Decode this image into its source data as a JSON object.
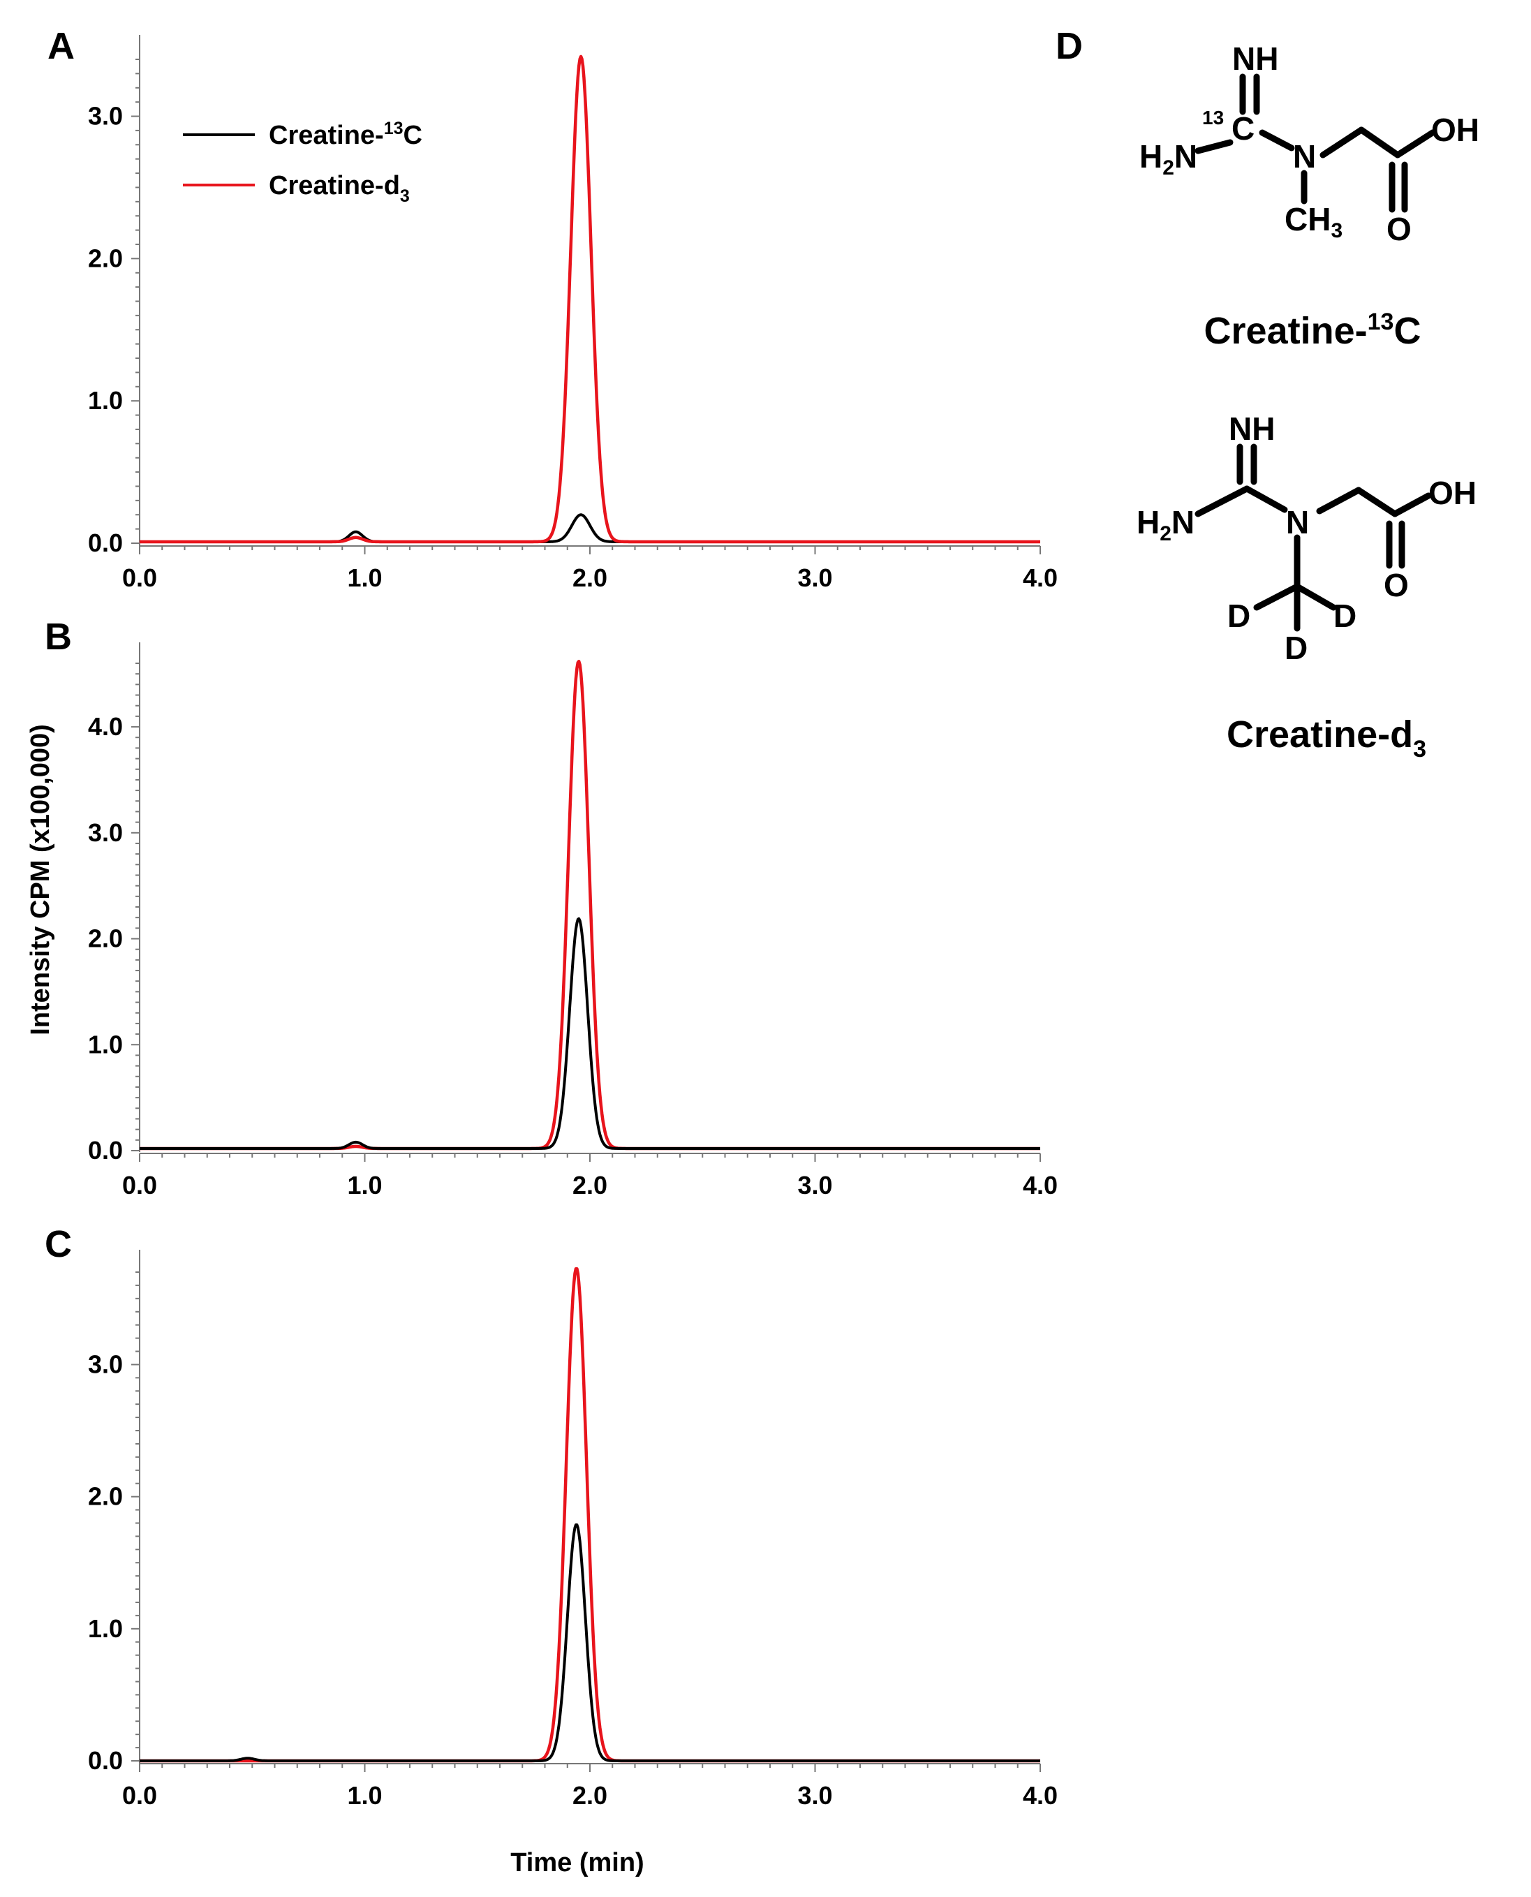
{
  "colors": {
    "black_series": "#000000",
    "red_series": "#e8141c"
  },
  "axis_titles": {
    "y": "Intensity CPM (x100,000)",
    "x": "Time (min)"
  },
  "legend": {
    "black": {
      "base": "Creatine-",
      "sup": "13",
      "tail": "C"
    },
    "red": {
      "base": "Creatine-d",
      "sub": "3"
    }
  },
  "chart_data": [
    {
      "type": "line",
      "panel": "A",
      "xlim": [
        0,
        4
      ],
      "ylim": [
        0,
        3.4
      ],
      "x_ticks": [
        "0.0",
        "1.0",
        "2.0",
        "3.0",
        "4.0"
      ],
      "y_ticks": [
        "0.0",
        "1.0",
        "2.0",
        "3.0"
      ],
      "baseline": 0.01,
      "series": [
        {
          "name": "Creatine-13C",
          "color": "#000000",
          "peaks": [
            {
              "x": 0.96,
              "height": 0.07,
              "width": 0.03
            },
            {
              "x": 1.96,
              "height": 0.19,
              "width": 0.04
            }
          ]
        },
        {
          "name": "Creatine-d3",
          "color": "#e8141c",
          "peaks": [
            {
              "x": 0.96,
              "height": 0.03,
              "width": 0.03
            },
            {
              "x": 1.96,
              "height": 3.41,
              "width": 0.045
            }
          ]
        }
      ]
    },
    {
      "type": "line",
      "panel": "B",
      "xlim": [
        0,
        4
      ],
      "ylim": [
        0,
        4.6
      ],
      "x_ticks": [
        "0.0",
        "1.0",
        "2.0",
        "3.0",
        "4.0"
      ],
      "y_ticks": [
        "0.0",
        "1.0",
        "2.0",
        "3.0",
        "4.0"
      ],
      "baseline": 0.02,
      "series": [
        {
          "name": "Creatine-13C",
          "color": "#000000",
          "peaks": [
            {
              "x": 0.96,
              "height": 0.06,
              "width": 0.03
            },
            {
              "x": 1.95,
              "height": 2.17,
              "width": 0.04
            }
          ]
        },
        {
          "name": "Creatine-d3",
          "color": "#e8141c",
          "peaks": [
            {
              "x": 0.96,
              "height": 0.02,
              "width": 0.03
            },
            {
              "x": 1.95,
              "height": 4.6,
              "width": 0.045
            }
          ]
        }
      ]
    },
    {
      "type": "line",
      "panel": "C",
      "xlim": [
        0,
        4
      ],
      "ylim": [
        0,
        3.7
      ],
      "x_ticks": [
        "0.0",
        "1.0",
        "2.0",
        "3.0",
        "4.0"
      ],
      "y_ticks": [
        "0.0",
        "1.0",
        "2.0",
        "3.0"
      ],
      "baseline": 0.0,
      "series": [
        {
          "name": "Creatine-13C",
          "color": "#000000",
          "peaks": [
            {
              "x": 0.48,
              "height": 0.02,
              "width": 0.03
            },
            {
              "x": 1.94,
              "height": 1.79,
              "width": 0.04
            }
          ]
        },
        {
          "name": "Creatine-d3",
          "color": "#e8141c",
          "peaks": [
            {
              "x": 1.94,
              "height": 3.73,
              "width": 0.045
            }
          ]
        }
      ]
    }
  ],
  "structures": {
    "panel_label": "D",
    "creatine_13c": {
      "label_base": "Creatine-",
      "label_sup": "13",
      "label_tail": "C",
      "atoms": {
        "imine": "NH",
        "isotope": "13",
        "carbon": "C",
        "amine": "H",
        "amine_sub": "2",
        "amine_n": "N",
        "n": "N",
        "methyl": "CH",
        "methyl_sub": "3",
        "oh": "OH",
        "o": "O"
      }
    },
    "creatine_d3": {
      "label_base": "Creatine-d",
      "label_sub": "3",
      "atoms": {
        "imine": "NH",
        "amine": "H",
        "amine_sub": "2",
        "amine_n": "N",
        "n": "N",
        "oh": "OH",
        "o": "O",
        "d1": "D",
        "d2": "D",
        "d3": "D"
      }
    }
  }
}
